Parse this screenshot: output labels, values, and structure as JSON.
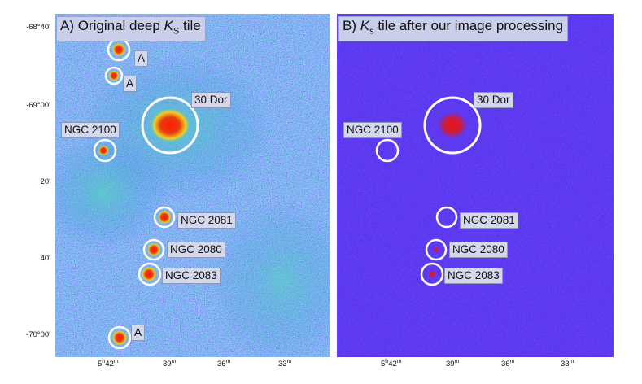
{
  "panels": [
    {
      "title_prefix": "A) Original deep ",
      "title_symbol": "K",
      "title_sub": "S",
      "title_suffix": " tile"
    },
    {
      "title_prefix": "B) ",
      "title_symbol": "K",
      "title_sub": "s",
      "title_suffix": " tile after our image processing"
    }
  ],
  "labels": {
    "a_label": "A",
    "dor": "30 Dor",
    "ngc2100": "NGC 2100",
    "ngc2081": "NGC 2081",
    "ngc2080": "NGC 2080",
    "ngc2083": "NGC 2083"
  },
  "y_ticks": [
    "-68°40'",
    "-69°00'",
    "20'",
    "40'",
    "-70°00'"
  ],
  "x_ticks": [
    {
      "main": "5",
      "sup1": "h",
      "mid": "42",
      "sup2": "m"
    },
    {
      "main": "39",
      "sup2": "m"
    },
    {
      "main": "36",
      "sup2": "m"
    },
    {
      "main": "33",
      "sup2": "m"
    }
  ],
  "colors": {
    "background_a": "#2f86e0",
    "background_b": "#5a36f0",
    "hot": "#e01010",
    "circle": "#ffffff"
  }
}
